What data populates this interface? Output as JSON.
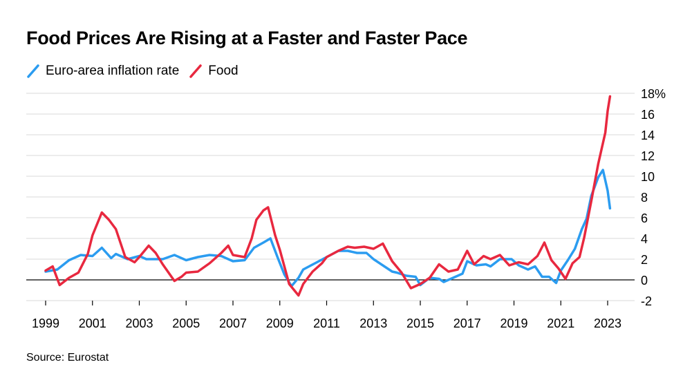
{
  "title": "Food Prices Are Rising at a Faster and Faster Pace",
  "source": "Source: Eurostat",
  "chart_data": {
    "type": "line",
    "title": "Food Prices Are Rising at a Faster and Faster Pace",
    "xlabel": "",
    "ylabel": "",
    "y_unit": "%",
    "ylim": [
      -2,
      18
    ],
    "yticks": [
      -2,
      0,
      2,
      4,
      6,
      8,
      10,
      12,
      14,
      16,
      18
    ],
    "ytick_labels": [
      "-2",
      "0",
      "2",
      "4",
      "6",
      "8",
      "10",
      "12",
      "14",
      "16",
      "18%"
    ],
    "xlim": [
      1999,
      2024
    ],
    "xticks": [
      1999,
      2001,
      2003,
      2005,
      2007,
      2009,
      2011,
      2013,
      2015,
      2017,
      2019,
      2021,
      2023
    ],
    "xtick_labels": [
      "1999",
      "2001",
      "2003",
      "2005",
      "2007",
      "2009",
      "2011",
      "2013",
      "2015",
      "2017",
      "2019",
      "2021",
      "2023"
    ],
    "grid": true,
    "legend_position": "top-left",
    "series": [
      {
        "name": "Euro-area inflation rate",
        "color": "#2b9cf0",
        "x": [
          1999.0,
          1999.5,
          2000.0,
          2000.5,
          2001.0,
          2001.4,
          2001.8,
          2002.0,
          2002.5,
          2003.0,
          2003.3,
          2003.7,
          2004.0,
          2004.5,
          2005.0,
          2005.5,
          2006.0,
          2006.5,
          2007.0,
          2007.5,
          2007.9,
          2008.3,
          2008.6,
          2008.9,
          2009.2,
          2009.5,
          2009.8,
          2010.0,
          2010.5,
          2011.0,
          2011.5,
          2011.9,
          2012.3,
          2012.7,
          2013.0,
          2013.4,
          2013.8,
          2014.0,
          2014.4,
          2014.8,
          2015.0,
          2015.4,
          2015.8,
          2016.0,
          2016.4,
          2016.8,
          2017.0,
          2017.4,
          2017.8,
          2018.0,
          2018.4,
          2018.9,
          2019.2,
          2019.6,
          2019.9,
          2020.2,
          2020.5,
          2020.8,
          2021.0,
          2021.3,
          2021.6,
          2021.9,
          2022.1,
          2022.3,
          2022.6,
          2022.8,
          2023.0,
          2023.1
        ],
        "values": [
          0.8,
          1.0,
          1.9,
          2.4,
          2.3,
          3.1,
          2.1,
          2.5,
          2.0,
          2.3,
          2.0,
          2.0,
          2.0,
          2.4,
          1.9,
          2.2,
          2.4,
          2.3,
          1.8,
          1.9,
          3.1,
          3.6,
          4.0,
          2.2,
          0.5,
          -0.6,
          0.2,
          1.0,
          1.6,
          2.2,
          2.8,
          2.8,
          2.6,
          2.6,
          2.0,
          1.4,
          0.8,
          0.7,
          0.4,
          0.3,
          -0.5,
          0.2,
          0.1,
          -0.2,
          0.2,
          0.6,
          1.8,
          1.4,
          1.5,
          1.3,
          2.0,
          2.0,
          1.4,
          1.0,
          1.3,
          0.3,
          0.3,
          -0.3,
          0.9,
          1.9,
          3.0,
          4.9,
          5.9,
          8.1,
          9.9,
          10.6,
          8.6,
          6.9
        ]
      },
      {
        "name": "Food",
        "color": "#e8283f",
        "x": [
          1999.0,
          1999.3,
          1999.6,
          2000.0,
          2000.4,
          2000.8,
          2001.0,
          2001.4,
          2001.7,
          2002.0,
          2002.4,
          2002.8,
          2003.0,
          2003.4,
          2003.7,
          2004.0,
          2004.5,
          2004.8,
          2005.0,
          2005.5,
          2006.0,
          2006.5,
          2006.8,
          2007.0,
          2007.5,
          2007.8,
          2008.0,
          2008.3,
          2008.5,
          2008.8,
          2009.0,
          2009.4,
          2009.8,
          2010.0,
          2010.4,
          2010.8,
          2011.0,
          2011.5,
          2011.9,
          2012.2,
          2012.6,
          2013.0,
          2013.4,
          2013.8,
          2014.2,
          2014.6,
          2015.0,
          2015.4,
          2015.8,
          2016.2,
          2016.6,
          2017.0,
          2017.3,
          2017.7,
          2018.0,
          2018.4,
          2018.8,
          2019.2,
          2019.6,
          2020.0,
          2020.3,
          2020.6,
          2020.9,
          2021.2,
          2021.5,
          2021.8,
          2022.0,
          2022.3,
          2022.6,
          2022.9,
          2023.0,
          2023.1
        ],
        "values": [
          0.9,
          1.3,
          -0.5,
          0.2,
          0.7,
          2.5,
          4.3,
          6.5,
          5.8,
          4.9,
          2.2,
          1.7,
          2.2,
          3.3,
          2.6,
          1.5,
          -0.1,
          0.3,
          0.7,
          0.8,
          1.6,
          2.6,
          3.3,
          2.4,
          2.2,
          4.0,
          5.8,
          6.7,
          7.0,
          4.3,
          2.9,
          -0.4,
          -1.5,
          -0.4,
          0.8,
          1.6,
          2.2,
          2.8,
          3.2,
          3.1,
          3.2,
          3.0,
          3.5,
          1.8,
          0.7,
          -0.8,
          -0.4,
          0.2,
          1.5,
          0.8,
          1.0,
          2.8,
          1.5,
          2.3,
          2.0,
          2.4,
          1.4,
          1.7,
          1.5,
          2.3,
          3.6,
          1.9,
          1.1,
          0.1,
          1.6,
          2.2,
          4.1,
          7.6,
          11.2,
          14.2,
          16.3,
          17.7
        ]
      }
    ]
  }
}
